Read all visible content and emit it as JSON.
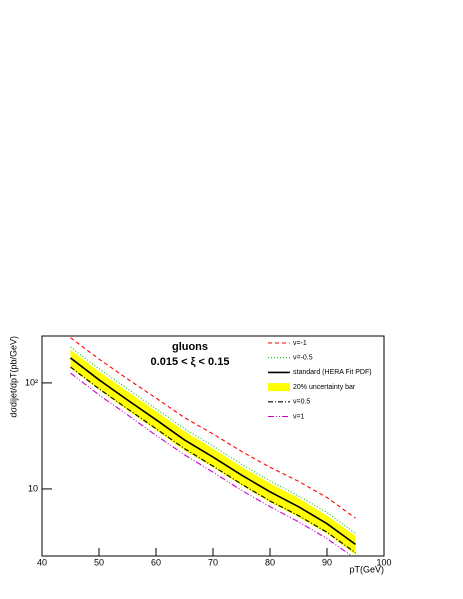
{
  "chart_data": {
    "type": "line",
    "title": "gluons",
    "subtitle": "0.015 < ξ < 0.15",
    "x_label": "pT(GeV)",
    "y_label": "dσdijet/dpT(pb/GeV)",
    "x": [
      45,
      50,
      55,
      60,
      65,
      70,
      75,
      80,
      85,
      90,
      95
    ],
    "xlim": [
      40,
      100
    ],
    "xticks": [
      40,
      50,
      60,
      70,
      80,
      90,
      100
    ],
    "ylim": [
      2.33,
      277
    ],
    "yticks": [
      10,
      {
        "value": 100,
        "label": "10²"
      }
    ],
    "log_y": true,
    "band": {
      "name": "20% uncertainty bar",
      "color": "#ffff00",
      "upper": [
        206,
        128,
        83,
        54,
        35,
        24,
        16.2,
        11.3,
        8.2,
        5.6,
        3.6
      ],
      "lower": [
        138,
        86,
        55,
        36,
        23,
        16,
        10.8,
        7.5,
        5.4,
        3.8,
        2.4
      ]
    },
    "series": [
      {
        "name": "ν=-1",
        "color": "#ff0000",
        "dash": "4,3",
        "values": [
          267,
          168,
          109,
          72,
          47,
          33,
          22.6,
          16,
          11.8,
          8.3,
          5.3
        ]
      },
      {
        "name": "ν=-0.5",
        "color": "#00cc00",
        "dash": "1,2",
        "values": [
          218,
          136,
          88,
          57,
          37,
          25.4,
          17.1,
          11.9,
          8.6,
          6.0,
          3.8
        ]
      },
      {
        "name": "standard (HERA Fit PDF)",
        "color": "#000000",
        "dash": "",
        "values": [
          172,
          107,
          69,
          45,
          29,
          20,
          13.5,
          9.4,
          6.8,
          4.7,
          3.0
        ]
      },
      {
        "name": "ν=0.5",
        "color": "#000000",
        "dash": "5,2,1,2",
        "values": [
          141,
          88,
          57,
          37,
          24,
          16.4,
          11.1,
          7.7,
          5.6,
          3.9,
          2.5
        ]
      },
      {
        "name": "ν=1",
        "color": "#cc00cc",
        "dash": "6,2,1,2,1,2",
        "values": [
          124,
          77,
          50,
          32,
          21,
          14.4,
          9.7,
          6.8,
          4.9,
          3.4,
          2.2
        ]
      }
    ]
  }
}
